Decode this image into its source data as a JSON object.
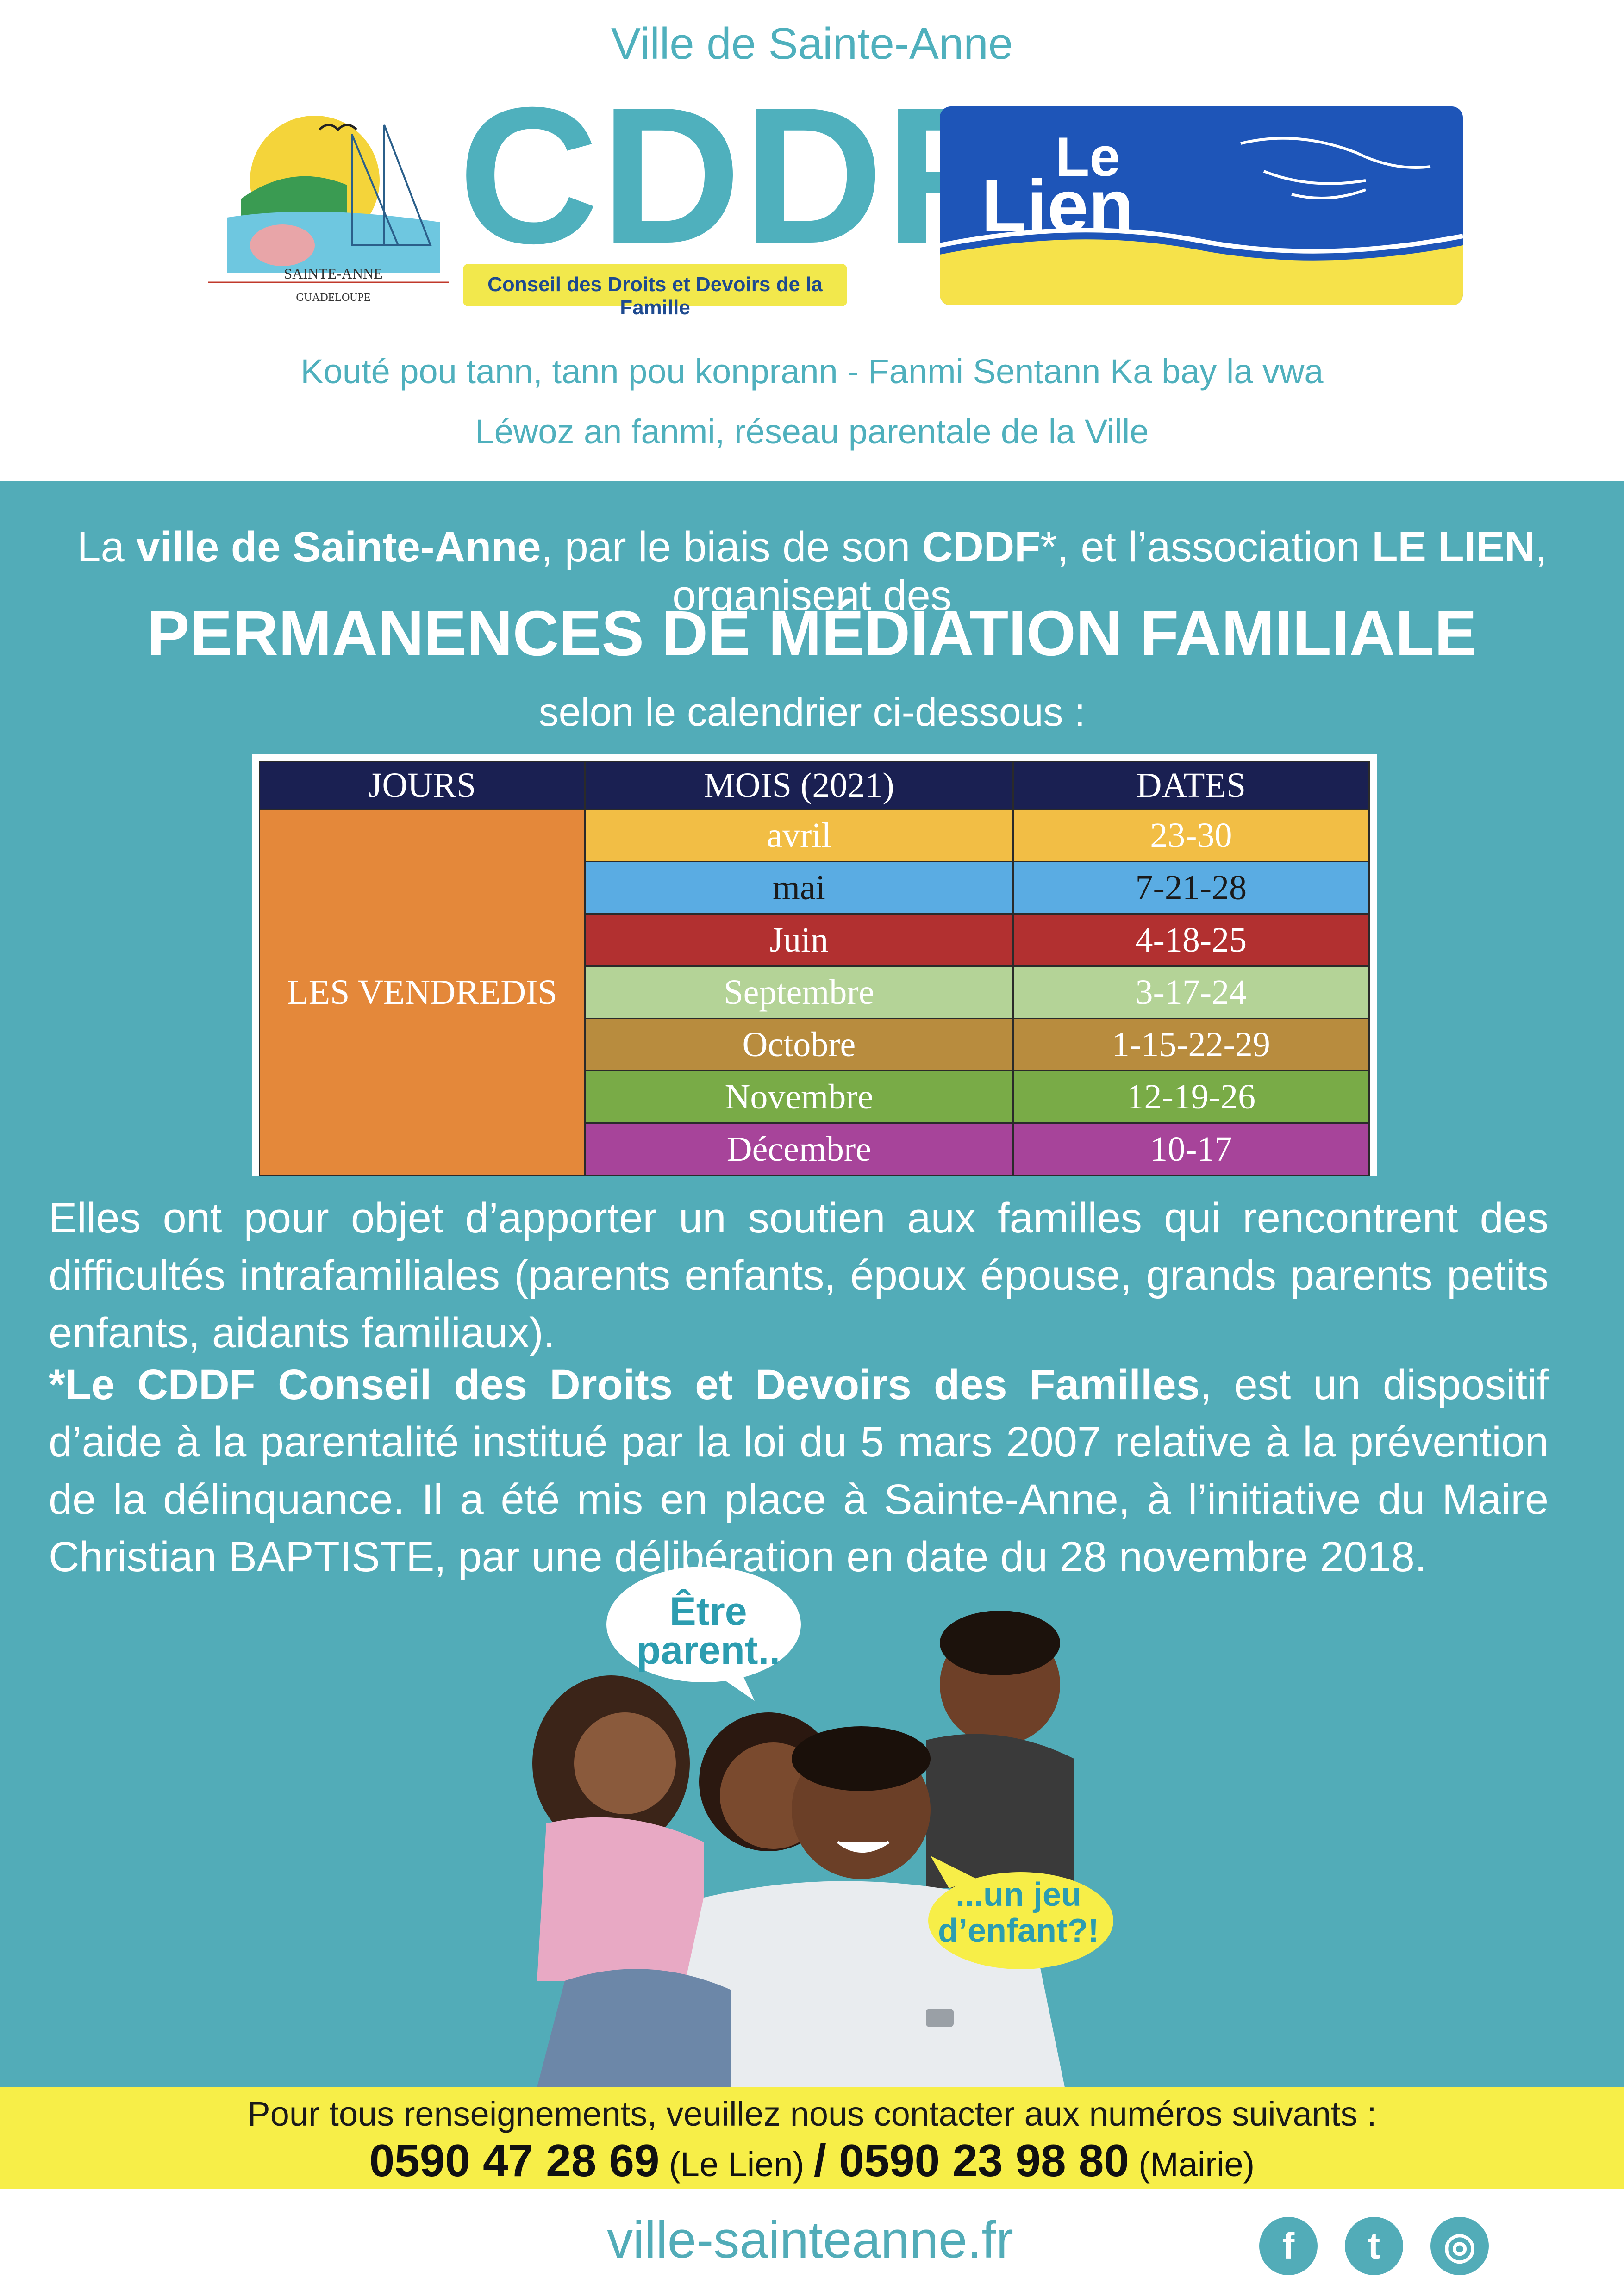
{
  "header": {
    "ville": "Ville de Sainte-Anne",
    "cddf_title": "CDDF",
    "cddf_subtitle": "Conseil des Droits et Devoirs de la Famille",
    "sainte_anne_logo_line1": "SAINTE-ANNE",
    "sainte_anne_logo_line2": "GUADELOUPE",
    "lien_logo_top": "Le",
    "lien_logo_bottom": "Lien",
    "slogan1": "Kouté pou tann, tann pou konprann - Fanmi Sentann Ka bay la vwa",
    "slogan2": "Léwoz an fanmi, réseau parentale de la Ville"
  },
  "intro": {
    "p1": "La ",
    "b1": "ville de Sainte-Anne",
    "p2": ",  par le biais de son ",
    "b2": "CDDF",
    "p3": "*,  et l’association ",
    "b3": "LE LIEN",
    "p4": ", organisent des"
  },
  "main_title": "PERMANENCES DE MÉDIATION FAMILIALE",
  "calendar_note": "selon le calendrier ci-dessous :",
  "table": {
    "headers": [
      "JOURS",
      "MOIS (2021)",
      "DATES"
    ],
    "jours": "LES VENDREDIS",
    "rows": [
      {
        "mois": "avril",
        "dates": "23-30",
        "bg": "#f2be45",
        "fg": "#ffffff"
      },
      {
        "mois": "mai",
        "dates": "7-21-28",
        "bg": "#5aace3",
        "fg": "#1a1a1a"
      },
      {
        "mois": "Juin",
        "dates": "4-18-25",
        "bg": "#b23030",
        "fg": "#ffffff"
      },
      {
        "mois": "Septembre",
        "dates": "3-17-24",
        "bg": "#b4d397",
        "fg": "#ffffff"
      },
      {
        "mois": "Octobre",
        "dates": "1-15-22-29",
        "bg": "#b88c3e",
        "fg": "#ffffff"
      },
      {
        "mois": "Novembre",
        "dates": "12-19-26",
        "bg": "#79ab47",
        "fg": "#ffffff"
      },
      {
        "mois": "Décembre",
        "dates": "10-17",
        "bg": "#a7449a",
        "fg": "#ffffff"
      }
    ]
  },
  "para1": "Elles ont pour objet d’apporter un soutien aux familles qui rencontrent des difficultés intrafamiliales (parents enfants, époux épouse, grands parents petits enfants, aidants familiaux).",
  "para2": {
    "bold": "*Le CDDF  Conseil des Droits et Devoirs des Familles",
    "rest": ",  est un dispositif d’aide à la parentalité institué par la loi du 5 mars 2007 relative à la prévention de la délinquance. Il a été mis en place à Sainte-Anne, à l’initiative du Maire Christian BAPTISTE, par une délibération en date du 28 novembre 2018."
  },
  "bubbles": {
    "b1_line1": "Être",
    "b1_line2": "parent..",
    "b2_line1": "...un jeu",
    "b2_line2": "d’enfant?!"
  },
  "footer": {
    "contact": "Pour tous renseignements, veuillez nous contacter aux numéros suivants :",
    "phone1": "0590 47 28 69",
    "phone1_label": " (Le Lien) ",
    "sep": "/",
    "phone2": " 0590 23 98 80",
    "phone2_label": " (Mairie)",
    "website": "ville-sainteanne.fr",
    "fb": "f",
    "tw": "t",
    "ig": "◎"
  },
  "colors": {
    "teal": "#52acb8",
    "yellow": "#f7ee48",
    "table_header": "#1a2052",
    "jours": "#e4883a"
  }
}
